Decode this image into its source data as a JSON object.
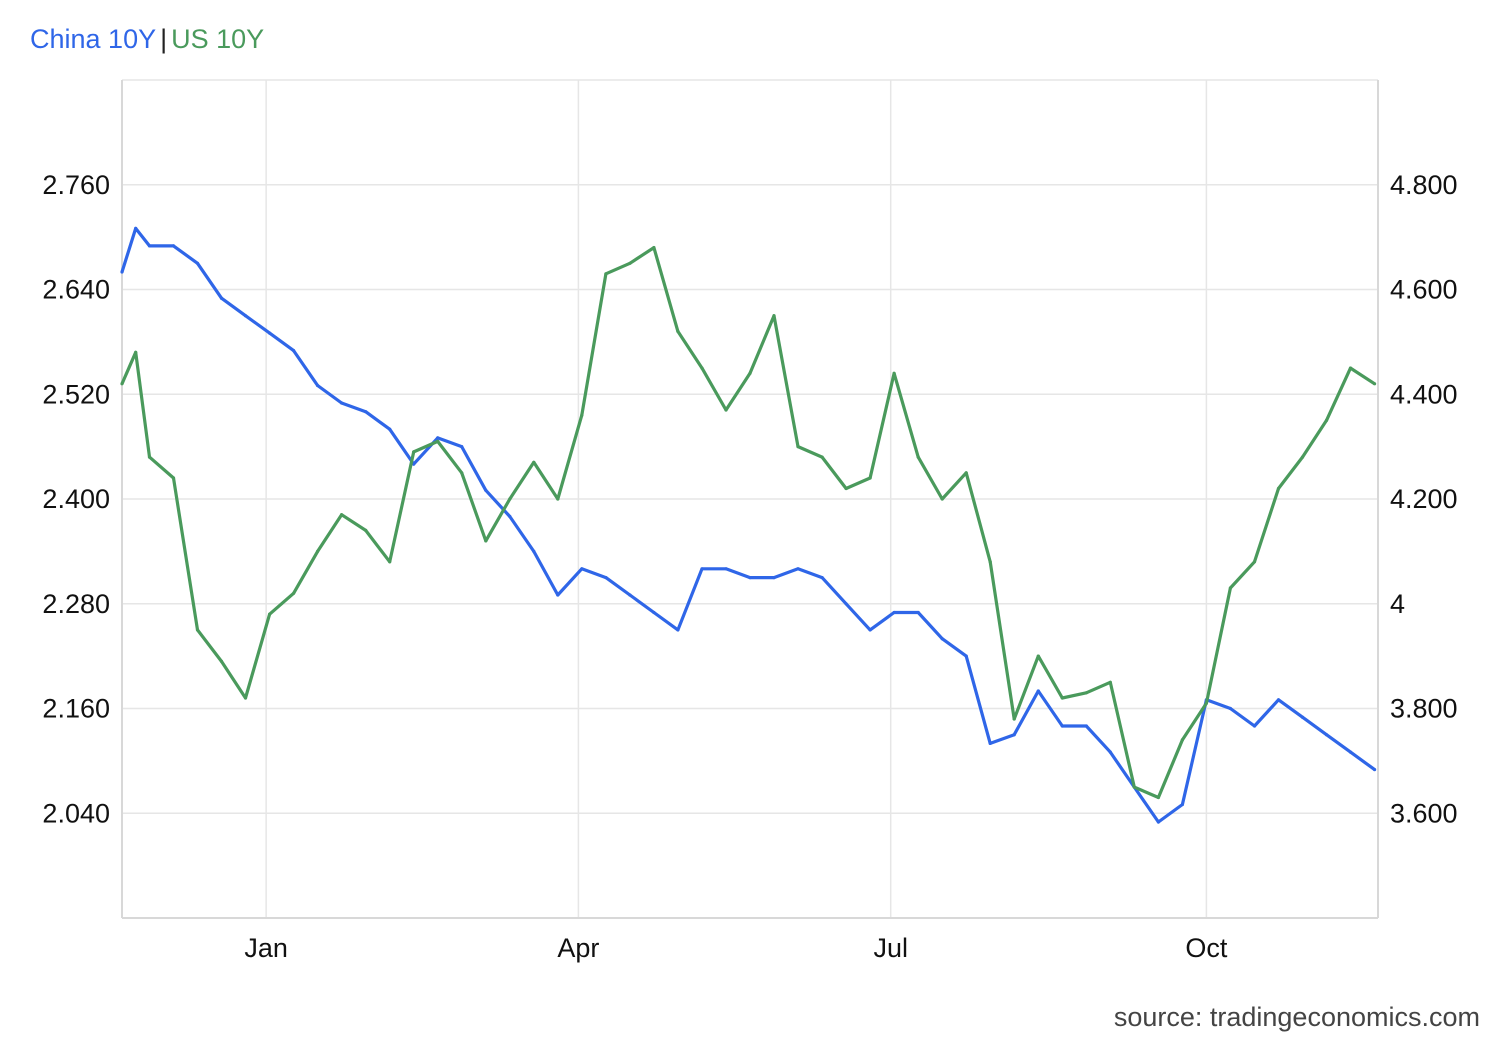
{
  "legend": {
    "series1_label": "China 10Y",
    "separator": "|",
    "series2_label": "US 10Y"
  },
  "source_text": "source: tradingeconomics.com",
  "colors": {
    "china": "#2f66e8",
    "us": "#4a9a5c",
    "grid": "#e6e6e6"
  },
  "chart_data": {
    "type": "line",
    "x_tick_labels": [
      "Jan",
      "Apr",
      "Jul",
      "Oct"
    ],
    "y_left": {
      "ticks": [
        "2.760",
        "2.640",
        "2.520",
        "2.400",
        "2.280",
        "2.160",
        "2.040"
      ],
      "range": [
        1.92,
        2.88
      ]
    },
    "y_right": {
      "ticks": [
        "4.800",
        "4.600",
        "4.400",
        "4.200",
        "4",
        "3.800",
        "3.600"
      ],
      "range": [
        3.4,
        5.0
      ]
    },
    "grid": true,
    "series": [
      {
        "name": "China 10Y",
        "axis": "left",
        "x": [
          "2023-11-20",
          "2023-11-24",
          "2023-11-28",
          "2023-12-05",
          "2023-12-12",
          "2023-12-19",
          "2023-12-26",
          "2024-01-02",
          "2024-01-09",
          "2024-01-16",
          "2024-01-23",
          "2024-01-30",
          "2024-02-06",
          "2024-02-13",
          "2024-02-20",
          "2024-02-27",
          "2024-03-05",
          "2024-03-12",
          "2024-03-19",
          "2024-03-26",
          "2024-04-02",
          "2024-04-09",
          "2024-04-16",
          "2024-04-23",
          "2024-04-30",
          "2024-05-07",
          "2024-05-14",
          "2024-05-21",
          "2024-05-28",
          "2024-06-04",
          "2024-06-11",
          "2024-06-18",
          "2024-06-25",
          "2024-07-02",
          "2024-07-09",
          "2024-07-16",
          "2024-07-23",
          "2024-07-30",
          "2024-08-06",
          "2024-08-13",
          "2024-08-20",
          "2024-08-27",
          "2024-09-03",
          "2024-09-10",
          "2024-09-17",
          "2024-09-24",
          "2024-10-01",
          "2024-10-08",
          "2024-10-15",
          "2024-10-22",
          "2024-10-29",
          "2024-11-05",
          "2024-11-12",
          "2024-11-19"
        ],
        "values": [
          2.66,
          2.71,
          2.69,
          2.69,
          2.67,
          2.63,
          2.61,
          2.59,
          2.57,
          2.53,
          2.51,
          2.5,
          2.48,
          2.44,
          2.47,
          2.46,
          2.41,
          2.38,
          2.34,
          2.29,
          2.32,
          2.31,
          2.29,
          2.27,
          2.25,
          2.32,
          2.32,
          2.31,
          2.31,
          2.32,
          2.31,
          2.28,
          2.25,
          2.27,
          2.27,
          2.24,
          2.22,
          2.12,
          2.13,
          2.18,
          2.14,
          2.14,
          2.11,
          2.07,
          2.03,
          2.05,
          2.17,
          2.16,
          2.14,
          2.17,
          2.15,
          2.13,
          2.11,
          2.09
        ]
      },
      {
        "name": "US 10Y",
        "axis": "right",
        "x": [
          "2023-11-20",
          "2023-11-24",
          "2023-11-28",
          "2023-12-05",
          "2023-12-12",
          "2023-12-19",
          "2023-12-26",
          "2024-01-02",
          "2024-01-09",
          "2024-01-16",
          "2024-01-23",
          "2024-01-30",
          "2024-02-06",
          "2024-02-13",
          "2024-02-20",
          "2024-02-27",
          "2024-03-05",
          "2024-03-12",
          "2024-03-19",
          "2024-03-26",
          "2024-04-02",
          "2024-04-09",
          "2024-04-16",
          "2024-04-23",
          "2024-04-30",
          "2024-05-07",
          "2024-05-14",
          "2024-05-21",
          "2024-05-28",
          "2024-06-04",
          "2024-06-11",
          "2024-06-18",
          "2024-06-25",
          "2024-07-02",
          "2024-07-09",
          "2024-07-16",
          "2024-07-23",
          "2024-07-30",
          "2024-08-06",
          "2024-08-13",
          "2024-08-20",
          "2024-08-27",
          "2024-09-03",
          "2024-09-10",
          "2024-09-17",
          "2024-09-24",
          "2024-10-01",
          "2024-10-08",
          "2024-10-15",
          "2024-10-22",
          "2024-10-29",
          "2024-11-05",
          "2024-11-12",
          "2024-11-19"
        ],
        "values": [
          4.42,
          4.48,
          4.28,
          4.24,
          3.95,
          3.89,
          3.82,
          3.98,
          4.02,
          4.1,
          4.17,
          4.14,
          4.08,
          4.29,
          4.31,
          4.25,
          4.12,
          4.2,
          4.27,
          4.2,
          4.36,
          4.63,
          4.65,
          4.68,
          4.52,
          4.45,
          4.37,
          4.44,
          4.55,
          4.3,
          4.28,
          4.22,
          4.24,
          4.44,
          4.28,
          4.2,
          4.25,
          4.08,
          3.78,
          3.9,
          3.82,
          3.83,
          3.85,
          3.65,
          3.63,
          3.74,
          3.81,
          4.03,
          4.08,
          4.22,
          4.28,
          4.35,
          4.45,
          4.42
        ]
      }
    ]
  }
}
